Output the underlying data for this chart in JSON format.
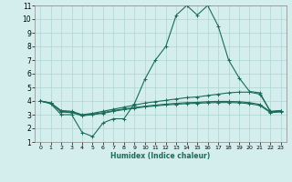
{
  "xlabel": "Humidex (Indice chaleur)",
  "xlim": [
    -0.5,
    23.5
  ],
  "ylim": [
    1,
    11
  ],
  "xticks": [
    0,
    1,
    2,
    3,
    4,
    5,
    6,
    7,
    8,
    9,
    10,
    11,
    12,
    13,
    14,
    15,
    16,
    17,
    18,
    19,
    20,
    21,
    22,
    23
  ],
  "yticks": [
    1,
    2,
    3,
    4,
    5,
    6,
    7,
    8,
    9,
    10,
    11
  ],
  "bg_color": "#d4eeee",
  "grid_color": "#aed4d4",
  "line_color": "#1a6b5a",
  "line1_y": [
    4.0,
    3.8,
    3.0,
    3.0,
    1.7,
    1.4,
    2.4,
    2.7,
    2.7,
    3.8,
    5.6,
    7.0,
    8.0,
    10.3,
    11.0,
    10.3,
    11.0,
    9.5,
    7.0,
    5.7,
    4.7,
    4.6,
    3.2,
    3.3
  ],
  "line2_y": [
    4.0,
    3.85,
    3.3,
    3.25,
    3.0,
    3.1,
    3.25,
    3.4,
    3.55,
    3.7,
    3.85,
    3.95,
    4.05,
    4.15,
    4.25,
    4.3,
    4.4,
    4.5,
    4.6,
    4.65,
    4.65,
    4.5,
    3.25,
    3.3
  ],
  "line3_y": [
    4.0,
    3.85,
    3.25,
    3.2,
    2.95,
    3.05,
    3.15,
    3.3,
    3.42,
    3.52,
    3.62,
    3.7,
    3.77,
    3.83,
    3.88,
    3.9,
    3.95,
    3.97,
    3.97,
    3.95,
    3.88,
    3.75,
    3.2,
    3.25
  ],
  "line4_y": [
    4.0,
    3.85,
    3.2,
    3.15,
    2.92,
    3.0,
    3.1,
    3.25,
    3.37,
    3.47,
    3.57,
    3.64,
    3.71,
    3.76,
    3.81,
    3.83,
    3.87,
    3.89,
    3.89,
    3.87,
    3.8,
    3.67,
    3.15,
    3.2
  ]
}
